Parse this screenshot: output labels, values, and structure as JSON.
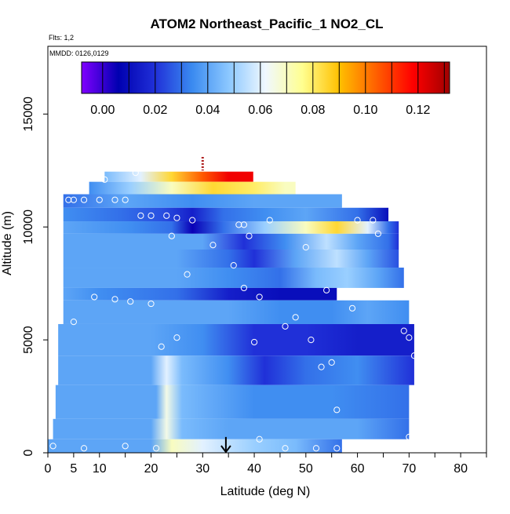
{
  "chart_data": {
    "type": "heatmap",
    "title": "ATOM2 Northeast_Pacific_1 NO2_CL",
    "subtitle_lines": [
      "Flts: 1,2",
      "MMDD: 0126,0129"
    ],
    "xlabel": "Latitude (deg N)",
    "ylabel": "Altitude (m)",
    "xlim": [
      0,
      85
    ],
    "ylim": [
      0,
      18000
    ],
    "x_ticks": [
      0,
      5,
      10,
      20,
      30,
      40,
      50,
      60,
      70,
      80
    ],
    "y_ticks": [
      0,
      5000,
      10000,
      15000
    ],
    "colorbar": {
      "min": -0.008,
      "max": 0.132,
      "tick_values": [
        0.0,
        0.02,
        0.04,
        0.06,
        0.08,
        0.1,
        0.12
      ],
      "tick_labels": [
        "0.00",
        "0.02",
        "0.04",
        "0.06",
        "0.08",
        "0.10",
        "0.12"
      ],
      "colors": [
        "#8000ff",
        "#0000b0",
        "#2030d8",
        "#3a8af0",
        "#8cc8ff",
        "#f0f8ff",
        "#ffff90",
        "#ffc000",
        "#ff6000",
        "#ff0000",
        "#a00000"
      ]
    },
    "layers": [
      {
        "alt0": 12000,
        "alt1": 12450,
        "lat0": 11,
        "lat1": 39.8,
        "values": [
          [
            11,
            0.045
          ],
          [
            18,
            0.06
          ],
          [
            24,
            0.085
          ],
          [
            30,
            0.105
          ],
          [
            35,
            0.12
          ],
          [
            39,
            0.12
          ]
        ]
      },
      {
        "alt0": 11450,
        "alt1": 12000,
        "lat0": 8,
        "lat1": 48,
        "values": [
          [
            8,
            0.035
          ],
          [
            16,
            0.05
          ],
          [
            24,
            0.07
          ],
          [
            32,
            0.085
          ],
          [
            40,
            0.08
          ],
          [
            46,
            0.07
          ]
        ]
      },
      {
        "alt0": 10850,
        "alt1": 11450,
        "lat0": 3,
        "lat1": 57,
        "values": [
          [
            3,
            0.03
          ],
          [
            15,
            0.04
          ],
          [
            28,
            0.035
          ],
          [
            40,
            0.04
          ],
          [
            50,
            0.04
          ],
          [
            57,
            0.04
          ]
        ]
      },
      {
        "alt0": 10250,
        "alt1": 10850,
        "lat0": 3,
        "lat1": 66,
        "values": [
          [
            3,
            0.035
          ],
          [
            14,
            0.03
          ],
          [
            22,
            0.025
          ],
          [
            28,
            0.015
          ],
          [
            34,
            0.03
          ],
          [
            42,
            0.035
          ],
          [
            50,
            0.04
          ],
          [
            60,
            0.03
          ],
          [
            66,
            0.01
          ]
        ]
      },
      {
        "alt0": 9700,
        "alt1": 10250,
        "lat0": 3,
        "lat1": 68,
        "values": [
          [
            3,
            0.04
          ],
          [
            16,
            0.035
          ],
          [
            24,
            0.03
          ],
          [
            28,
            0.005
          ],
          [
            34,
            0.03
          ],
          [
            42,
            0.05
          ],
          [
            50,
            0.07
          ],
          [
            56,
            0.085
          ],
          [
            62,
            0.06
          ],
          [
            66,
            0.03
          ],
          [
            68,
            0.02
          ]
        ]
      },
      {
        "alt0": 9000,
        "alt1": 9700,
        "lat0": 3,
        "lat1": 68,
        "values": [
          [
            3,
            0.04
          ],
          [
            20,
            0.04
          ],
          [
            30,
            0.04
          ],
          [
            38,
            0.02
          ],
          [
            46,
            0.035
          ],
          [
            54,
            0.055
          ],
          [
            60,
            0.04
          ],
          [
            66,
            0.03
          ],
          [
            68,
            0.02
          ]
        ]
      },
      {
        "alt0": 8200,
        "alt1": 9000,
        "lat0": 3,
        "lat1": 68,
        "values": [
          [
            3,
            0.04
          ],
          [
            25,
            0.04
          ],
          [
            35,
            0.03
          ],
          [
            40,
            0.02
          ],
          [
            48,
            0.04
          ],
          [
            56,
            0.055
          ],
          [
            62,
            0.04
          ],
          [
            68,
            0.025
          ]
        ]
      },
      {
        "alt0": 7300,
        "alt1": 8200,
        "lat0": 3,
        "lat1": 69,
        "values": [
          [
            3,
            0.04
          ],
          [
            25,
            0.04
          ],
          [
            35,
            0.035
          ],
          [
            45,
            0.03
          ],
          [
            52,
            0.045
          ],
          [
            58,
            0.05
          ],
          [
            64,
            0.04
          ],
          [
            69,
            0.03
          ]
        ]
      },
      {
        "alt0": 6750,
        "alt1": 7300,
        "lat0": 3,
        "lat1": 56,
        "values": [
          [
            3,
            0.04
          ],
          [
            10,
            0.035
          ],
          [
            25,
            0.03
          ],
          [
            35,
            0.015
          ],
          [
            45,
            0.01
          ],
          [
            56,
            0.01
          ]
        ]
      },
      {
        "alt0": 5700,
        "alt1": 6750,
        "lat0": 3,
        "lat1": 70,
        "values": [
          [
            3,
            0.04
          ],
          [
            25,
            0.04
          ],
          [
            35,
            0.04
          ],
          [
            45,
            0.035
          ],
          [
            55,
            0.035
          ],
          [
            62,
            0.04
          ],
          [
            70,
            0.035
          ]
        ]
      },
      {
        "alt0": 4300,
        "alt1": 5700,
        "lat0": 2,
        "lat1": 71,
        "values": [
          [
            2,
            0.04
          ],
          [
            20,
            0.04
          ],
          [
            30,
            0.035
          ],
          [
            40,
            0.02
          ],
          [
            50,
            0.02
          ],
          [
            60,
            0.015
          ],
          [
            71,
            0.015
          ]
        ]
      },
      {
        "alt0": 3000,
        "alt1": 4300,
        "lat0": 2,
        "lat1": 71,
        "values": [
          [
            2,
            0.04
          ],
          [
            20,
            0.04
          ],
          [
            23,
            0.06
          ],
          [
            26,
            0.045
          ],
          [
            35,
            0.035
          ],
          [
            42,
            0.02
          ],
          [
            50,
            0.03
          ],
          [
            60,
            0.035
          ],
          [
            71,
            0.02
          ]
        ]
      },
      {
        "alt0": 1500,
        "alt1": 3000,
        "lat0": 1.5,
        "lat1": 70,
        "values": [
          [
            1.5,
            0.04
          ],
          [
            21,
            0.04
          ],
          [
            23,
            0.065
          ],
          [
            26,
            0.045
          ],
          [
            40,
            0.035
          ],
          [
            55,
            0.035
          ],
          [
            70,
            0.03
          ]
        ]
      },
      {
        "alt0": 600,
        "alt1": 1500,
        "lat0": 1,
        "lat1": 70,
        "values": [
          [
            1,
            0.04
          ],
          [
            20,
            0.04
          ],
          [
            23,
            0.065
          ],
          [
            26,
            0.045
          ],
          [
            35,
            0.04
          ],
          [
            50,
            0.04
          ],
          [
            60,
            0.04
          ],
          [
            70,
            0.03
          ]
        ]
      },
      {
        "alt0": 0,
        "alt1": 600,
        "lat0": 0,
        "lat1": 57,
        "values": [
          [
            0,
            0.04
          ],
          [
            20,
            0.04
          ],
          [
            24,
            0.07
          ],
          [
            30,
            0.06
          ],
          [
            40,
            0.05
          ],
          [
            48,
            0.045
          ],
          [
            57,
            0.03
          ]
        ]
      }
    ],
    "samples": [
      [
        11,
        12100
      ],
      [
        17,
        12400
      ],
      [
        4,
        11200
      ],
      [
        5,
        11200
      ],
      [
        7,
        11200
      ],
      [
        10,
        11200
      ],
      [
        13,
        11200
      ],
      [
        15,
        11200
      ],
      [
        18,
        10500
      ],
      [
        20,
        10500
      ],
      [
        23,
        10500
      ],
      [
        25,
        10400
      ],
      [
        28,
        10300
      ],
      [
        37,
        10100
      ],
      [
        38,
        10100
      ],
      [
        43,
        10300
      ],
      [
        60,
        10300
      ],
      [
        63,
        10300
      ],
      [
        64,
        9700
      ],
      [
        24,
        9600
      ],
      [
        39,
        9600
      ],
      [
        32,
        9200
      ],
      [
        50,
        9100
      ],
      [
        36,
        8300
      ],
      [
        27,
        7900
      ],
      [
        38,
        7300
      ],
      [
        54,
        7200
      ],
      [
        41,
        6900
      ],
      [
        9,
        6900
      ],
      [
        13,
        6800
      ],
      [
        16,
        6700
      ],
      [
        20,
        6600
      ],
      [
        1.5,
        6600
      ],
      [
        1.5,
        6400
      ],
      [
        59,
        6400
      ],
      [
        5,
        5800
      ],
      [
        46,
        5600
      ],
      [
        48,
        6000
      ],
      [
        69,
        5400
      ],
      [
        25,
        5100
      ],
      [
        22,
        4700
      ],
      [
        40,
        4900
      ],
      [
        51,
        5000
      ],
      [
        70,
        5100
      ],
      [
        71,
        4300
      ],
      [
        55,
        4000
      ],
      [
        53,
        3800
      ],
      [
        56,
        1900
      ],
      [
        41,
        600
      ],
      [
        70,
        700
      ],
      [
        1,
        300
      ],
      [
        7,
        200
      ],
      [
        15,
        300
      ],
      [
        21,
        200
      ],
      [
        46,
        200
      ],
      [
        52,
        200
      ],
      [
        56,
        200
      ]
    ],
    "flight_path_marker": {
      "lat": 30,
      "alt0": 12500,
      "alt1": 13100
    },
    "arrow_marker": {
      "lat": 34.5,
      "alt_top": 700,
      "alt_bottom": 0
    }
  }
}
